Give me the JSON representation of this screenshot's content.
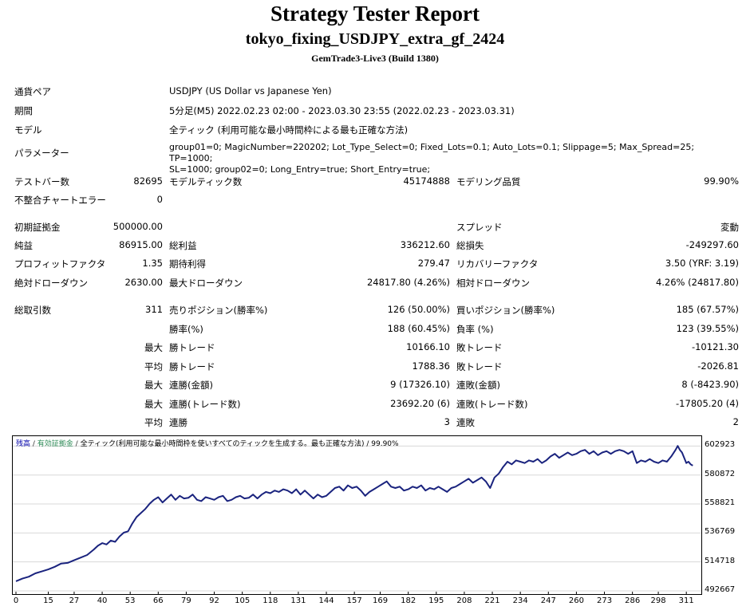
{
  "header": {
    "title": "Strategy Tester Report",
    "subtitle": "tokyo_fixing_USDJPY_extra_gf_2424",
    "server": "GemTrade3-Live3 (Build 1380)"
  },
  "info": {
    "pair_label": "通貨ペア",
    "pair_value": "USDJPY (US Dollar vs Japanese Yen)",
    "period_label": "期間",
    "period_value": "5分足(M5) 2022.02.23 02:00 - 2023.03.30 23:55 (2022.02.23 - 2023.03.31)",
    "model_label": "モデル",
    "model_value": "全ティック (利用可能な最小時間枠による最も正確な方法)",
    "params_label": "パラメーター",
    "params_line1": "group01=0; MagicNumber=220202; Lot_Type_Select=0; Fixed_Lots=0.1; Auto_Lots=0.1; Slippage=5; Max_Spread=25; TP=1000;",
    "params_line2": "SL=1000; group02=0; Long_Entry=true; Short_Entry=true;"
  },
  "stats": {
    "bars_label": "テストバー数",
    "bars_value": "82695",
    "ticks_label": "モデルティック数",
    "ticks_value": "45174888",
    "quality_label": "モデリング品質",
    "quality_value": "99.90%",
    "mismatch_label": "不整合チャートエラー",
    "mismatch_value": "0",
    "deposit_label": "初期証拠金",
    "deposit_value": "500000.00",
    "spread_label": "スプレッド",
    "spread_value": "変動",
    "net_label": "純益",
    "net_value": "86915.00",
    "gross_profit_label": "総利益",
    "gross_profit_value": "336212.60",
    "gross_loss_label": "総損失",
    "gross_loss_value": "-249297.60",
    "pf_label": "プロフィットファクタ",
    "pf_value": "1.35",
    "expected_label": "期待利得",
    "expected_value": "279.47",
    "recovery_label": "リカバリーファクタ",
    "recovery_value": "3.50 (YRF: 3.19)",
    "abs_dd_label": "絶対ドローダウン",
    "abs_dd_value": "2630.00",
    "max_dd_label": "最大ドローダウン",
    "max_dd_value": "24817.80 (4.26%)",
    "rel_dd_label": "相対ドローダウン",
    "rel_dd_value": "4.26% (24817.80)",
    "trades_label": "総取引数",
    "trades_value": "311",
    "short_label": "売りポジション(勝率%)",
    "short_value": "126 (50.00%)",
    "long_label": "買いポジション(勝率%)",
    "long_value": "185 (67.57%)",
    "win_rate_label": "勝率(%)",
    "win_rate_value": "188 (60.45%)",
    "loss_rate_label": "負率 (%)",
    "loss_rate_value": "123 (39.55%)",
    "max_label": "最大",
    "avg_label": "平均",
    "max_win_label": "勝トレード",
    "max_win_value": "10166.10",
    "max_loss_label": "敗トレード",
    "max_loss_value": "-10121.30",
    "avg_win_label": "勝トレード",
    "avg_win_value": "1788.36",
    "avg_loss_label": "敗トレード",
    "avg_loss_value": "-2026.81",
    "max_cons_win_label": "連勝(金額)",
    "max_cons_win_value": "9 (17326.10)",
    "max_cons_loss_label": "連敗(金額)",
    "max_cons_loss_value": "8 (-8423.90)",
    "max_cons_profit_label": "連勝(トレード数)",
    "max_cons_profit_value": "23692.20 (6)",
    "max_cons_lossamt_label": "連敗(トレード数)",
    "max_cons_lossamt_value": "-17805.20 (4)",
    "avg_cons_win_label": "連勝",
    "avg_cons_win_value": "3",
    "avg_cons_loss_label": "連敗",
    "avg_cons_loss_value": "2"
  },
  "chart_legend": {
    "balance": "残高",
    "sep1": " / ",
    "equity": "有効証拠金",
    "sep2": " / ",
    "rest": "全ティック(利用可能な最小時間枠を使いすべてのティックを生成する。最も正確な方法) / 99.90%"
  },
  "chart_data": {
    "type": "line",
    "xlabel": "",
    "ylabel": "",
    "x_ticks": [
      "0",
      "15",
      "27",
      "40",
      "53",
      "66",
      "79",
      "92",
      "105",
      "118",
      "131",
      "144",
      "157",
      "169",
      "182",
      "195",
      "208",
      "221",
      "234",
      "247",
      "260",
      "273",
      "286",
      "298",
      "311"
    ],
    "y_ticks": [
      "602923",
      "580872",
      "558821",
      "536769",
      "514718",
      "492667"
    ],
    "ylim": [
      492667,
      608000
    ],
    "xlim": [
      0,
      315
    ],
    "colors": {
      "balance": "#1a237e"
    },
    "series": [
      {
        "name": "残高",
        "points": [
          [
            0,
            500000
          ],
          [
            3,
            502000
          ],
          [
            6,
            503500
          ],
          [
            9,
            506000
          ],
          [
            12,
            507500
          ],
          [
            15,
            509000
          ],
          [
            18,
            511000
          ],
          [
            21,
            513500
          ],
          [
            24,
            514000
          ],
          [
            27,
            516000
          ],
          [
            30,
            518000
          ],
          [
            33,
            520000
          ],
          [
            36,
            524000
          ],
          [
            38,
            527000
          ],
          [
            40,
            529000
          ],
          [
            42,
            528000
          ],
          [
            44,
            531000
          ],
          [
            46,
            530000
          ],
          [
            48,
            534000
          ],
          [
            50,
            537000
          ],
          [
            52,
            538000
          ],
          [
            54,
            544000
          ],
          [
            56,
            549000
          ],
          [
            58,
            552000
          ],
          [
            60,
            555000
          ],
          [
            62,
            559000
          ],
          [
            64,
            562000
          ],
          [
            66,
            564000
          ],
          [
            68,
            560000
          ],
          [
            70,
            563000
          ],
          [
            72,
            566000
          ],
          [
            74,
            562000
          ],
          [
            76,
            565000
          ],
          [
            78,
            563000
          ],
          [
            80,
            563500
          ],
          [
            82,
            566000
          ],
          [
            84,
            562000
          ],
          [
            86,
            561000
          ],
          [
            88,
            564000
          ],
          [
            90,
            563000
          ],
          [
            92,
            562000
          ],
          [
            94,
            564000
          ],
          [
            96,
            565000
          ],
          [
            98,
            561000
          ],
          [
            100,
            562000
          ],
          [
            102,
            564000
          ],
          [
            104,
            565000
          ],
          [
            106,
            563000
          ],
          [
            108,
            563500
          ],
          [
            110,
            566000
          ],
          [
            112,
            563000
          ],
          [
            114,
            566000
          ],
          [
            116,
            568000
          ],
          [
            118,
            567000
          ],
          [
            120,
            569000
          ],
          [
            122,
            568000
          ],
          [
            124,
            570000
          ],
          [
            126,
            569000
          ],
          [
            128,
            567000
          ],
          [
            130,
            570000
          ],
          [
            132,
            566000
          ],
          [
            134,
            569000
          ],
          [
            136,
            566000
          ],
          [
            138,
            563000
          ],
          [
            140,
            566000
          ],
          [
            142,
            564000
          ],
          [
            144,
            565000
          ],
          [
            146,
            568000
          ],
          [
            148,
            571000
          ],
          [
            150,
            572000
          ],
          [
            152,
            569000
          ],
          [
            154,
            573000
          ],
          [
            156,
            571000
          ],
          [
            158,
            572000
          ],
          [
            160,
            569000
          ],
          [
            162,
            565000
          ],
          [
            164,
            568000
          ],
          [
            166,
            570000
          ],
          [
            168,
            572000
          ],
          [
            170,
            574000
          ],
          [
            172,
            576000
          ],
          [
            174,
            572000
          ],
          [
            176,
            571000
          ],
          [
            178,
            572000
          ],
          [
            180,
            569000
          ],
          [
            182,
            570000
          ],
          [
            184,
            572000
          ],
          [
            186,
            571000
          ],
          [
            188,
            573000
          ],
          [
            190,
            569000
          ],
          [
            192,
            571000
          ],
          [
            194,
            570000
          ],
          [
            196,
            572000
          ],
          [
            198,
            570000
          ],
          [
            200,
            568000
          ],
          [
            202,
            571000
          ],
          [
            204,
            572000
          ],
          [
            206,
            574000
          ],
          [
            208,
            576000
          ],
          [
            210,
            578000
          ],
          [
            212,
            575000
          ],
          [
            214,
            577000
          ],
          [
            216,
            579000
          ],
          [
            218,
            576000
          ],
          [
            220,
            571000
          ],
          [
            222,
            579000
          ],
          [
            224,
            582000
          ],
          [
            226,
            587000
          ],
          [
            228,
            591000
          ],
          [
            230,
            589000
          ],
          [
            232,
            592000
          ],
          [
            234,
            591000
          ],
          [
            236,
            590000
          ],
          [
            238,
            592000
          ],
          [
            240,
            591000
          ],
          [
            242,
            593000
          ],
          [
            244,
            590000
          ],
          [
            246,
            592000
          ],
          [
            248,
            595000
          ],
          [
            250,
            597000
          ],
          [
            252,
            594000
          ],
          [
            254,
            596000
          ],
          [
            256,
            598000
          ],
          [
            258,
            596000
          ],
          [
            260,
            597000
          ],
          [
            262,
            599000
          ],
          [
            264,
            600000
          ],
          [
            266,
            597000
          ],
          [
            268,
            599000
          ],
          [
            270,
            596000
          ],
          [
            272,
            598000
          ],
          [
            274,
            599000
          ],
          [
            276,
            597000
          ],
          [
            278,
            599000
          ],
          [
            280,
            600000
          ],
          [
            282,
            599000
          ],
          [
            284,
            597000
          ],
          [
            286,
            599000
          ],
          [
            288,
            590000
          ],
          [
            290,
            592000
          ],
          [
            292,
            591000
          ],
          [
            294,
            593000
          ],
          [
            296,
            591000
          ],
          [
            298,
            590000
          ],
          [
            300,
            592000
          ],
          [
            302,
            591000
          ],
          [
            304,
            595000
          ],
          [
            306,
            600000
          ],
          [
            307,
            603000
          ],
          [
            308,
            600000
          ],
          [
            309,
            598000
          ],
          [
            310,
            594000
          ],
          [
            311,
            590000
          ],
          [
            312,
            591000
          ],
          [
            313,
            589000
          ],
          [
            314,
            588000
          ]
        ]
      }
    ]
  }
}
